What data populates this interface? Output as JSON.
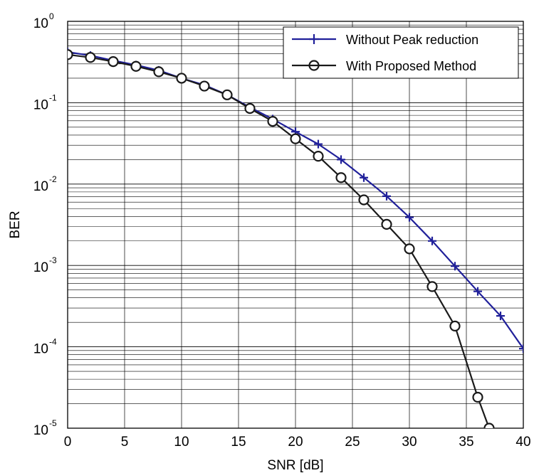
{
  "chart_data": {
    "type": "line",
    "xlabel": "SNR  [dB]",
    "ylabel": "BER",
    "xlim": [
      0,
      40
    ],
    "ylim": [
      1e-05,
      1
    ],
    "yscale": "log",
    "grid": "on (major and minor on y)",
    "legend_position": "top-right",
    "x_ticks": [
      "0",
      "5",
      "10",
      "15",
      "20",
      "25",
      "30",
      "35",
      "40"
    ],
    "y_ticks": [
      {
        "base": "10",
        "exp": "0"
      },
      {
        "base": "10",
        "exp": "-1"
      },
      {
        "base": "10",
        "exp": "-2"
      },
      {
        "base": "10",
        "exp": "-3"
      },
      {
        "base": "10",
        "exp": "-4"
      },
      {
        "base": "10",
        "exp": "-5"
      }
    ],
    "series": [
      {
        "name": "Without Peak reduction",
        "color": "#20209a",
        "marker": "plus",
        "x": [
          0,
          2,
          4,
          6,
          8,
          10,
          12,
          14,
          16,
          18,
          20,
          22,
          24,
          26,
          28,
          30,
          32,
          34,
          36,
          38,
          40
        ],
        "y": [
          0.42,
          0.38,
          0.33,
          0.29,
          0.25,
          0.2,
          0.165,
          0.125,
          0.088,
          0.063,
          0.044,
          0.031,
          0.02,
          0.012,
          0.0071,
          0.0039,
          0.002,
          0.00098,
          0.00048,
          0.00024,
          9.5e-05
        ]
      },
      {
        "name": "With Proposed Method",
        "color": "#1a1a1a",
        "marker": "circle",
        "x": [
          0,
          2,
          4,
          6,
          8,
          10,
          12,
          14,
          16,
          18,
          20,
          22,
          24,
          26,
          28,
          30,
          32,
          34,
          36,
          37
        ],
        "y": [
          0.39,
          0.36,
          0.32,
          0.28,
          0.24,
          0.2,
          0.16,
          0.125,
          0.085,
          0.059,
          0.036,
          0.022,
          0.012,
          0.0064,
          0.0032,
          0.0016,
          0.00055,
          0.00018,
          2.4e-05,
          1e-05
        ]
      }
    ]
  }
}
